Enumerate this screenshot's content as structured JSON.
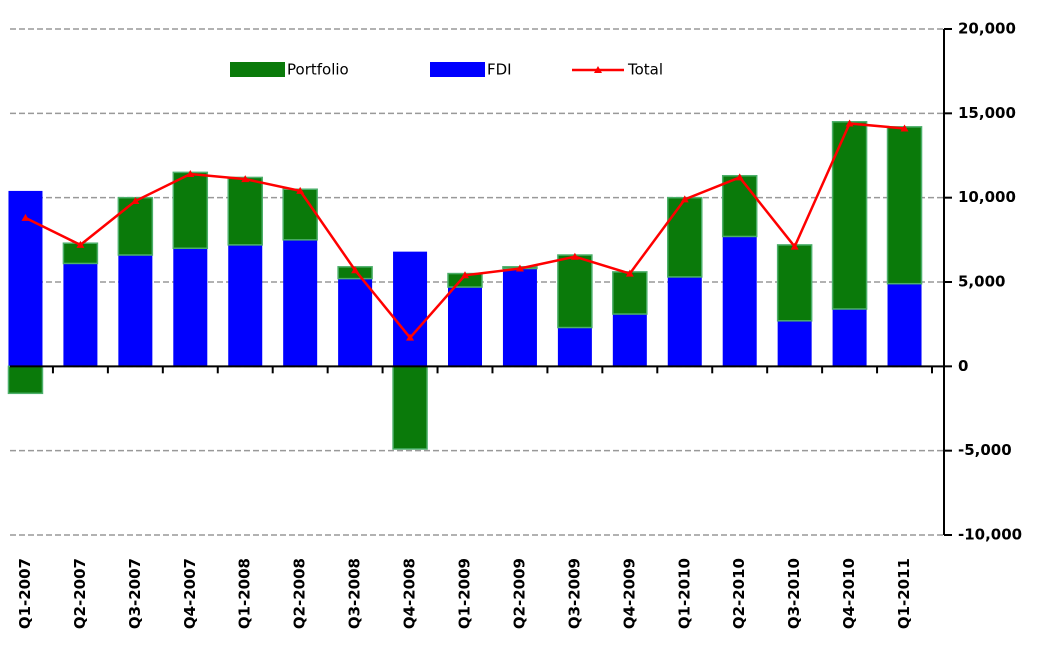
{
  "chart_data": {
    "type": "bar",
    "categories": [
      "Q1-2007",
      "Q2-2007",
      "Q3-2007",
      "Q4-2007",
      "Q1-2008",
      "Q2-2008",
      "Q3-2008",
      "Q4-2008",
      "Q1-2009",
      "Q2-2009",
      "Q3-2009",
      "Q4-2009",
      "Q1-2010",
      "Q2-2010",
      "Q3-2010",
      "Q4-2010",
      "Q1-2011"
    ],
    "series": [
      {
        "name": "Portfolio",
        "color": "#0a7a0a",
        "values": [
          -1600,
          1200,
          3400,
          4500,
          4000,
          3000,
          700,
          -4900,
          800,
          100,
          4300,
          2500,
          4700,
          3600,
          4500,
          11100,
          9300
        ]
      },
      {
        "name": "FDI",
        "color": "#0000ff",
        "values": [
          10400,
          6100,
          6600,
          7000,
          7200,
          7500,
          5200,
          6800,
          4700,
          5800,
          2300,
          3100,
          5300,
          7700,
          2700,
          3400,
          4900
        ]
      },
      {
        "name": "Total",
        "color": "#ff0000",
        "type": "line",
        "values": [
          8800,
          7200,
          9800,
          11400,
          11100,
          10400,
          5700,
          1700,
          5400,
          5800,
          6500,
          5500,
          9900,
          11200,
          7100,
          14400,
          14100
        ]
      }
    ],
    "ylim": [
      -10000,
      20000
    ],
    "yticks": [
      {
        "value": -10000,
        "label": "-10,000"
      },
      {
        "value": -5000,
        "label": "-5,000"
      },
      0,
      {
        "value": 5000,
        "label": "5,000"
      },
      {
        "value": 10000,
        "label": "10,000"
      },
      {
        "value": 15000,
        "label": "15,000"
      },
      {
        "value": 20000,
        "label": "20,000"
      }
    ],
    "grid": true,
    "legend": "top"
  }
}
